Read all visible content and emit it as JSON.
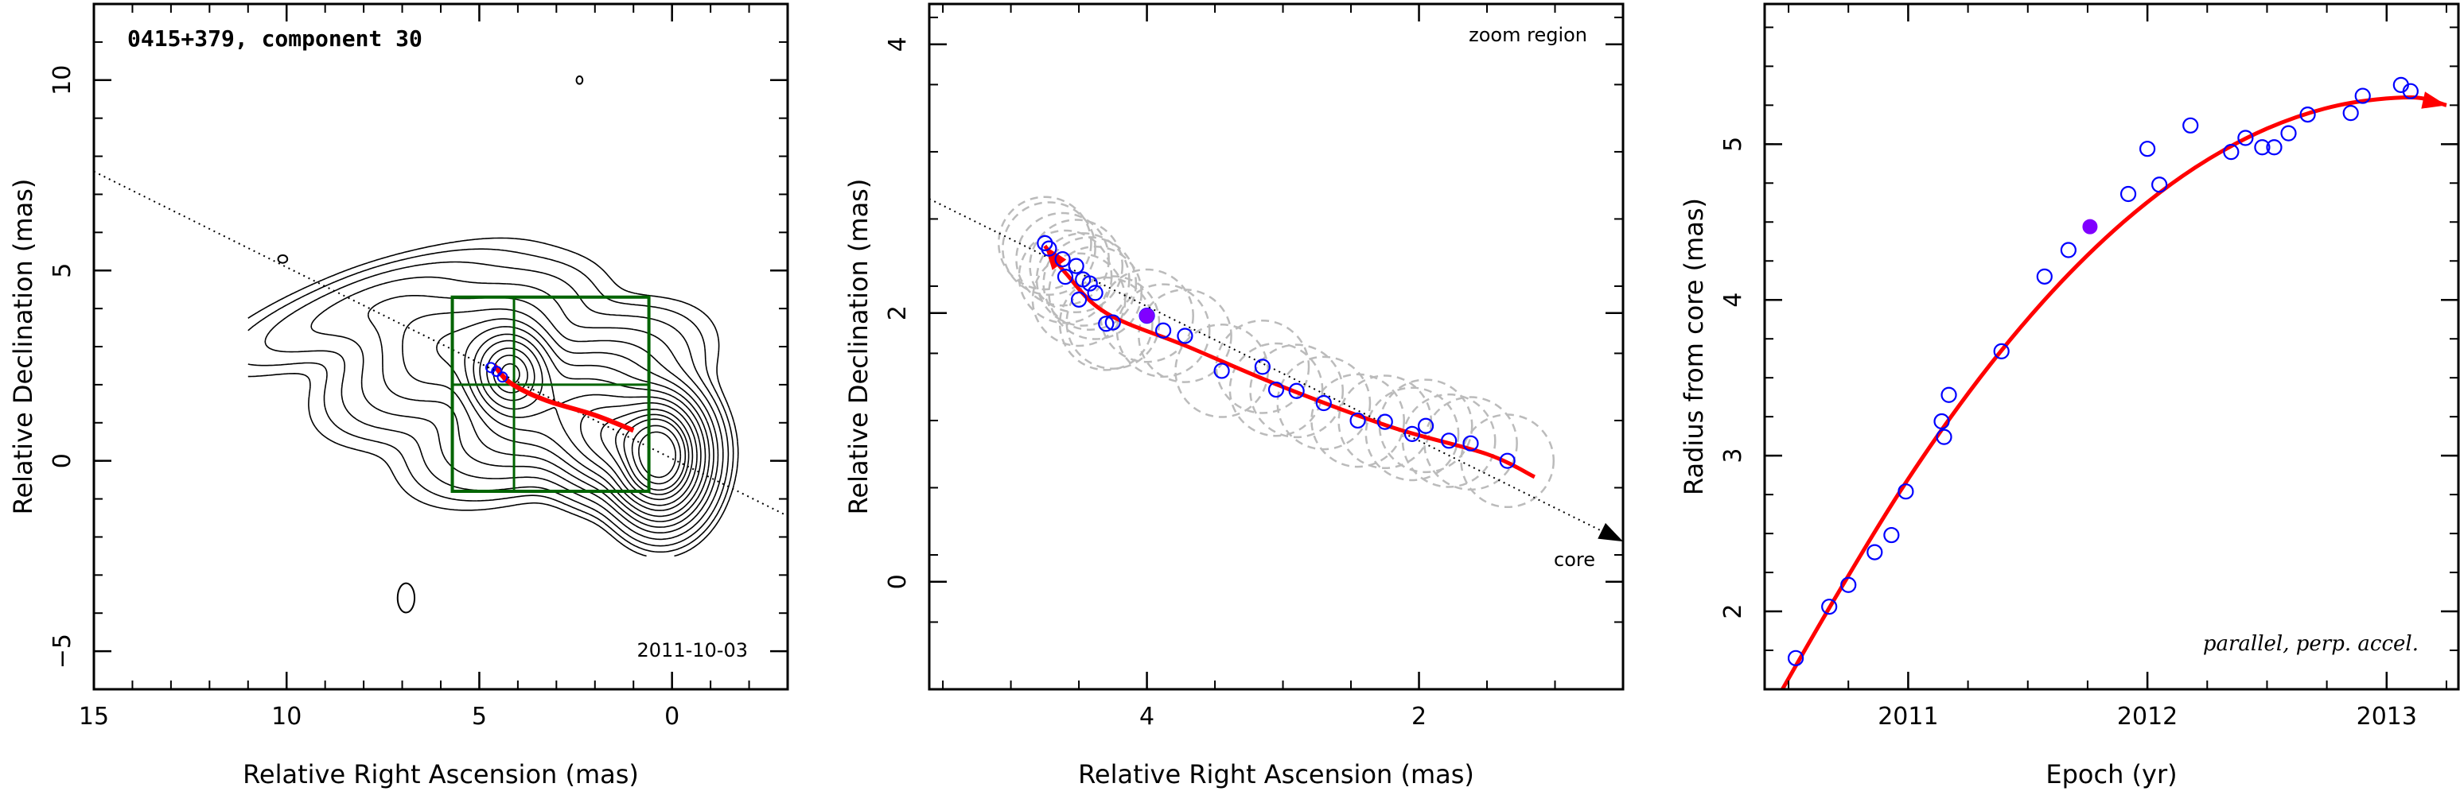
{
  "chart_data": [
    {
      "type": "scatter",
      "subtype": "contour-map",
      "title": "0415+379, component 30",
      "annotation": "2011-10-03",
      "xlabel": "Relative Right Ascension (mas)",
      "ylabel": "Relative Declination (mas)",
      "xlim": [
        15,
        -3
      ],
      "ylim": [
        -6,
        12
      ],
      "xticks": [
        15,
        10,
        5,
        0
      ],
      "yticks": [
        -5,
        0,
        5,
        10
      ],
      "colors": {
        "contour": "#000000",
        "fit_curve": "#ff0000",
        "box": "#006400",
        "points": "#0000ff"
      },
      "fit_curve": [
        [
          4.6,
          2.5
        ],
        [
          4.2,
          2.05
        ],
        [
          3.3,
          1.6
        ],
        [
          2.0,
          1.2
        ],
        [
          1.0,
          0.8
        ]
      ],
      "zoom_box": {
        "x": [
          0.6,
          5.7
        ],
        "y": [
          -0.8,
          4.3
        ],
        "grid_x": 4.1,
        "grid_y": 2.0
      },
      "jet_axis": [
        [
          15,
          7.6
        ],
        [
          -3.5,
          -1.7
        ]
      ],
      "points": [
        [
          4.7,
          2.45
        ],
        [
          4.55,
          2.35
        ],
        [
          4.4,
          2.2
        ]
      ]
    },
    {
      "type": "scatter",
      "annotation": "zoom region",
      "core_label": "core",
      "xlabel": "Relative Right Ascension (mas)",
      "ylabel": "Relative Declination (mas)",
      "xlim": [
        5.6,
        0.5
      ],
      "ylim": [
        -0.8,
        4.3
      ],
      "xticks": [
        4,
        2
      ],
      "yticks": [
        0,
        2,
        4
      ],
      "colors": {
        "points": "#0000ff",
        "highlight": "#8000ff",
        "fit_curve": "#ff0000",
        "circles": "#bbbbbb"
      },
      "fit_curve": [
        [
          4.75,
          2.5
        ],
        [
          4.6,
          2.3
        ],
        [
          4.3,
          2.0
        ],
        [
          3.7,
          1.75
        ],
        [
          3.0,
          1.45
        ],
        [
          2.2,
          1.15
        ],
        [
          1.5,
          0.95
        ],
        [
          1.15,
          0.78
        ]
      ],
      "jet_axis": [
        [
          5.6,
          2.85
        ],
        [
          0.5,
          0.3
        ]
      ],
      "x": [
        4.75,
        4.72,
        4.62,
        4.6,
        4.52,
        4.47,
        4.5,
        4.42,
        4.38,
        4.3,
        4.25,
        4.0,
        3.88,
        3.72,
        3.45,
        3.15,
        3.05,
        2.9,
        2.7,
        2.45,
        2.25,
        2.05,
        1.95,
        1.78,
        1.62,
        1.35
      ],
      "y": [
        2.52,
        2.48,
        2.4,
        2.27,
        2.35,
        2.25,
        2.1,
        2.22,
        2.15,
        1.92,
        1.93,
        1.98,
        1.87,
        1.83,
        1.57,
        1.6,
        1.43,
        1.42,
        1.33,
        1.2,
        1.19,
        1.1,
        1.16,
        1.05,
        1.03,
        0.9
      ],
      "highlight_point": [
        4.0,
        1.98
      ],
      "circle_radius": 0.34
    },
    {
      "type": "scatter",
      "annotation": "parallel, perp. accel.",
      "xlabel": "Epoch (yr)",
      "ylabel": "Radius from core (mas)",
      "xlim": [
        2010.4,
        2013.3
      ],
      "ylim": [
        1.5,
        5.9
      ],
      "xticks": [
        2011,
        2012,
        2013
      ],
      "yticks": [
        2,
        3,
        4,
        5
      ],
      "colors": {
        "points": "#0000ff",
        "highlight": "#8000ff",
        "fit_curve": "#ff0000"
      },
      "x": [
        2010.53,
        2010.67,
        2010.75,
        2010.86,
        2010.93,
        2010.99,
        2011.14,
        2011.15,
        2011.17,
        2011.39,
        2011.57,
        2011.67,
        2011.92,
        2012.0,
        2012.05,
        2012.18,
        2012.35,
        2012.41,
        2012.48,
        2012.53,
        2012.59,
        2012.67,
        2012.85,
        2012.9,
        2013.06,
        2013.1
      ],
      "y": [
        1.7,
        2.03,
        2.17,
        2.38,
        2.49,
        2.77,
        3.22,
        3.12,
        3.39,
        3.67,
        4.15,
        4.32,
        4.68,
        4.97,
        4.74,
        5.12,
        4.95,
        5.04,
        4.98,
        4.98,
        5.07,
        5.19,
        5.2,
        5.31,
        5.38,
        5.34
      ],
      "highlight_point": [
        2011.76,
        4.47
      ],
      "fit_curve": [
        [
          2010.4,
          1.3
        ],
        [
          2010.7,
          2.1
        ],
        [
          2011.0,
          2.85
        ],
        [
          2011.3,
          3.5
        ],
        [
          2011.6,
          4.05
        ],
        [
          2011.9,
          4.5
        ],
        [
          2012.2,
          4.85
        ],
        [
          2012.5,
          5.1
        ],
        [
          2012.8,
          5.25
        ],
        [
          2013.1,
          5.3
        ],
        [
          2013.25,
          5.25
        ]
      ]
    }
  ]
}
